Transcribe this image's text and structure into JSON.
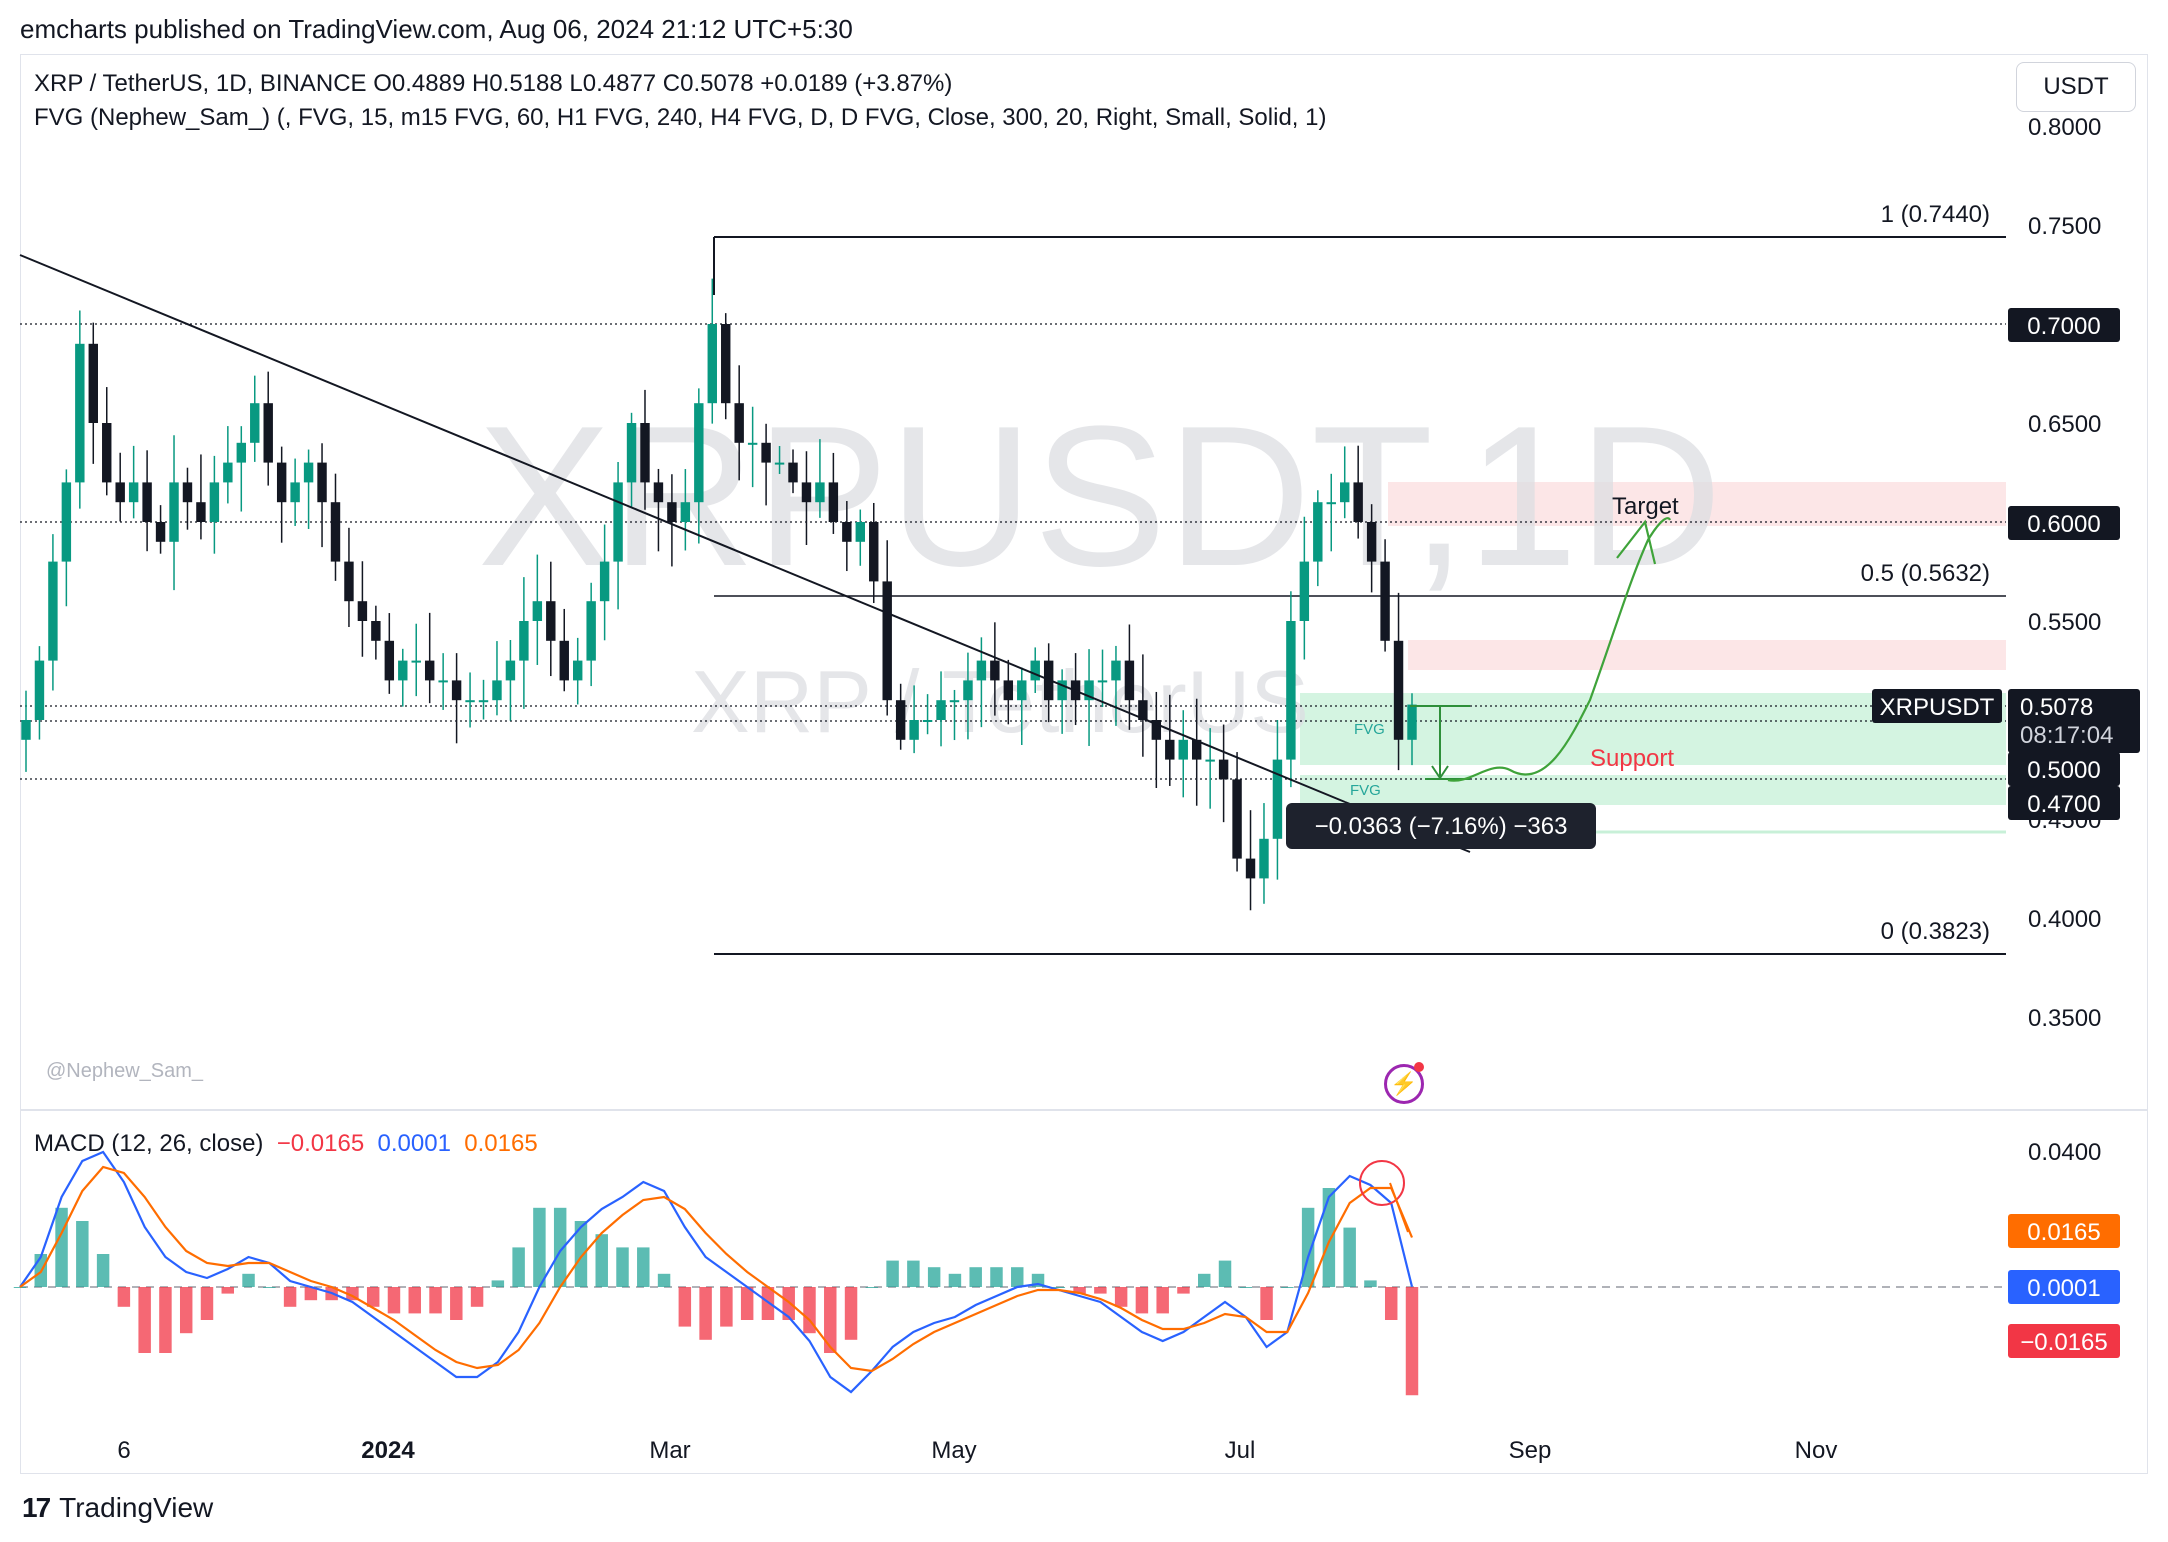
{
  "caption": "emcharts published on TradingView.com, Aug 06, 2024 21:12 UTC+5:30",
  "currency_button": "USDT",
  "legend": {
    "line1": "XRP / TetherUS, 1D, BINANCE  O0.4889  H0.5188  L0.4877  C0.5078  +0.0189 (+3.87%)",
    "line2": "FVG (Nephew_Sam_) (, FVG, 15, m15 FVG, 60, H1 FVG, 240, H4 FVG, D, D FVG, Close, 300, 20, Right, Small, Solid, 1)"
  },
  "watermark": {
    "big": "XRPUSDT,1D",
    "small": "XRP / TetherUS"
  },
  "author": "@Nephew_Sam_",
  "macd_legend": {
    "label": "MACD (12, 26, close)",
    "hist": "−0.0165",
    "macd": "0.0001",
    "signal": "0.0165"
  },
  "footer": {
    "brand": "TradingView",
    "logo": "17"
  },
  "annotations": {
    "target": "Target",
    "support": "Support",
    "fvg1": "FVG",
    "fvg2": "FVG",
    "measure": "−0.0363 (−7.16%) −363",
    "fib_top": "1 (0.7440)",
    "fib_mid": "0.5 (0.5632)",
    "fib_bot": "0 (0.3823)"
  },
  "colors": {
    "up": "#089981",
    "down": "#131722",
    "macd": "#2962ff",
    "signal": "#ff6d00",
    "hist_pos": "#26a69a",
    "hist_neg": "#f23645",
    "fvg_green": "#c8f0d8",
    "fvg_red": "#fbd0d3",
    "arrow": "#3fa33a"
  },
  "chart_data": [
    {
      "type": "candlestick",
      "title": "XRP / TetherUS, 1D, BINANCE",
      "x_ticks": [
        "6",
        "2024",
        "Mar",
        "May",
        "Jul",
        "Sep",
        "Nov"
      ],
      "y_ticks": [
        "0.8000",
        "0.7500",
        "0.6500",
        "0.5500",
        "0.4500",
        "0.4000",
        "0.3500"
      ],
      "ylim": [
        0.33,
        0.8
      ],
      "last_price": {
        "symbol": "XRPUSDT",
        "value": "0.5078",
        "countdown": "08:17:04"
      },
      "price_labels": [
        "0.7000",
        "0.6000",
        "0.5000",
        "0.4700"
      ],
      "horizontal_levels": [
        0.7,
        0.6,
        0.5078,
        0.5,
        0.47
      ],
      "fib_levels": [
        {
          "label": "1",
          "value": 0.744
        },
        {
          "label": "0.5",
          "value": 0.5632
        },
        {
          "label": "0",
          "value": 0.3823
        }
      ],
      "close_series": [
        0.5,
        0.53,
        0.58,
        0.62,
        0.69,
        0.65,
        0.62,
        0.61,
        0.62,
        0.6,
        0.59,
        0.62,
        0.61,
        0.6,
        0.62,
        0.63,
        0.64,
        0.66,
        0.63,
        0.61,
        0.62,
        0.63,
        0.61,
        0.58,
        0.56,
        0.55,
        0.54,
        0.52,
        0.53,
        0.53,
        0.52,
        0.52,
        0.51,
        0.51,
        0.51,
        0.52,
        0.53,
        0.55,
        0.56,
        0.54,
        0.52,
        0.53,
        0.56,
        0.58,
        0.62,
        0.65,
        0.62,
        0.61,
        0.6,
        0.61,
        0.66,
        0.7,
        0.66,
        0.64,
        0.64,
        0.63,
        0.63,
        0.62,
        0.61,
        0.62,
        0.6,
        0.59,
        0.6,
        0.57,
        0.51,
        0.49,
        0.5,
        0.5,
        0.51,
        0.51,
        0.52,
        0.53,
        0.52,
        0.51,
        0.52,
        0.53,
        0.51,
        0.52,
        0.51,
        0.52,
        0.52,
        0.53,
        0.51,
        0.5,
        0.49,
        0.48,
        0.49,
        0.48,
        0.48,
        0.47,
        0.43,
        0.42,
        0.44,
        0.48,
        0.55,
        0.58,
        0.61,
        0.61,
        0.62,
        0.6,
        0.58,
        0.54,
        0.49,
        0.5078
      ]
    },
    {
      "type": "line",
      "title": "MACD (12, 26, close)",
      "y_ticks": [
        "0.0400"
      ],
      "value_labels": [
        "0.0165",
        "0.0001",
        "−0.0165"
      ],
      "series": [
        {
          "name": "MACD",
          "values": [
            0.0,
            0.01,
            0.03,
            0.042,
            0.045,
            0.035,
            0.02,
            0.01,
            0.005,
            0.003,
            0.006,
            0.01,
            0.008,
            0.002,
            0.0,
            -0.002,
            -0.005,
            -0.01,
            -0.015,
            -0.02,
            -0.025,
            -0.03,
            -0.03,
            -0.025,
            -0.015,
            0.0,
            0.012,
            0.02,
            0.026,
            0.03,
            0.035,
            0.032,
            0.02,
            0.01,
            0.005,
            0.0,
            -0.005,
            -0.01,
            -0.018,
            -0.03,
            -0.035,
            -0.028,
            -0.02,
            -0.015,
            -0.012,
            -0.01,
            -0.006,
            -0.003,
            0.0,
            0.001,
            -0.001,
            -0.003,
            -0.005,
            -0.01,
            -0.015,
            -0.018,
            -0.015,
            -0.01,
            -0.005,
            -0.01,
            -0.02,
            -0.015,
            0.01,
            0.03,
            0.037,
            0.034,
            0.028,
            0.0001
          ]
        },
        {
          "name": "Signal",
          "values": [
            0.0,
            0.005,
            0.018,
            0.032,
            0.04,
            0.038,
            0.03,
            0.02,
            0.012,
            0.008,
            0.007,
            0.008,
            0.008,
            0.005,
            0.002,
            0.0,
            -0.003,
            -0.007,
            -0.011,
            -0.016,
            -0.021,
            -0.025,
            -0.027,
            -0.026,
            -0.021,
            -0.012,
            0.0,
            0.01,
            0.018,
            0.024,
            0.029,
            0.03,
            0.026,
            0.018,
            0.011,
            0.005,
            0.0,
            -0.005,
            -0.011,
            -0.02,
            -0.027,
            -0.028,
            -0.024,
            -0.019,
            -0.015,
            -0.012,
            -0.009,
            -0.006,
            -0.003,
            -0.001,
            -0.001,
            -0.002,
            -0.004,
            -0.007,
            -0.011,
            -0.014,
            -0.014,
            -0.012,
            -0.009,
            -0.01,
            -0.015,
            -0.015,
            -0.002,
            0.015,
            0.028,
            0.033,
            0.033,
            0.0165
          ]
        }
      ]
    }
  ]
}
